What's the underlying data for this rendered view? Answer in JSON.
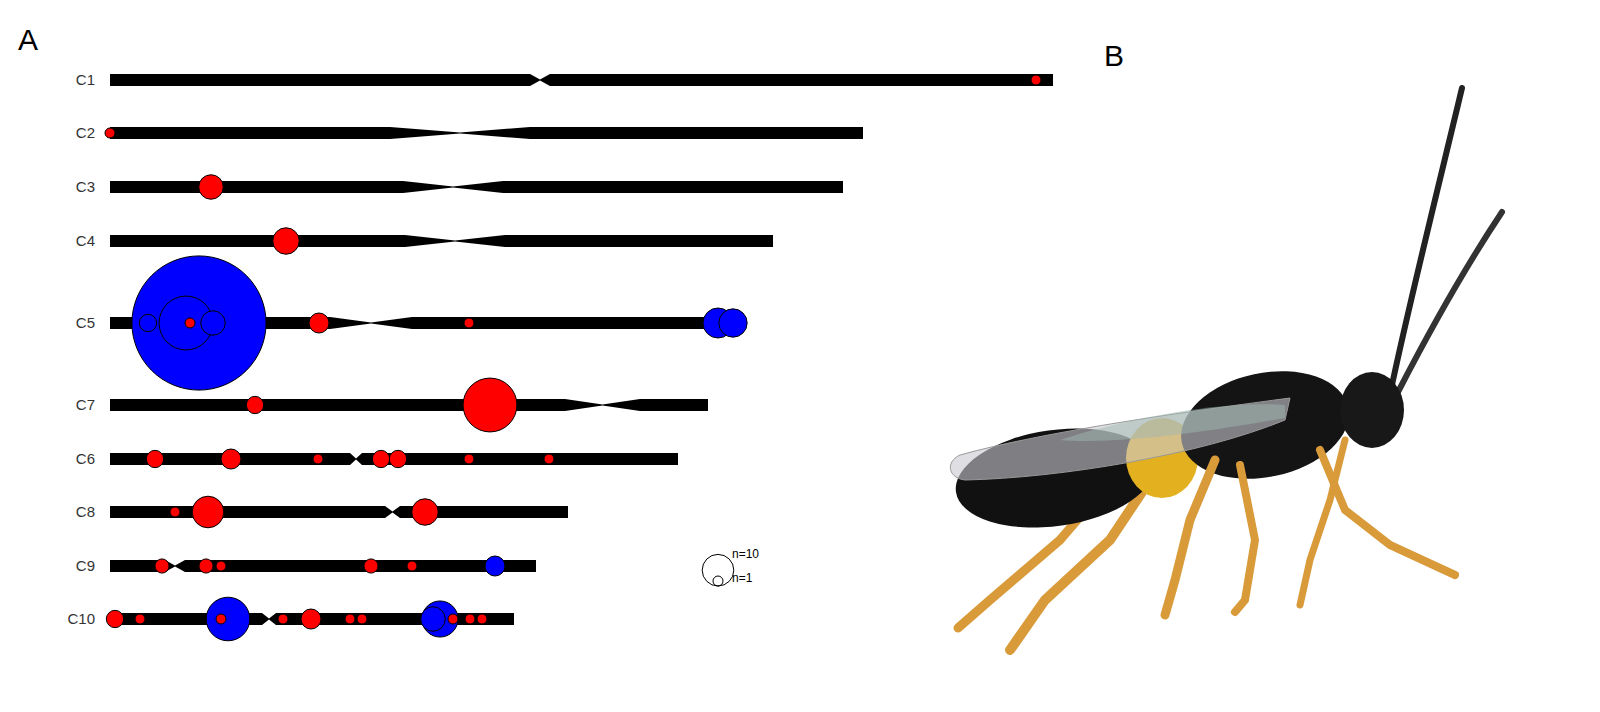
{
  "chart_data": {
    "type": "ideogram",
    "panel_labels": [
      "A",
      "B"
    ],
    "tick_labels": false,
    "chromosomes": [
      {
        "name": "C1",
        "length": 943,
        "centromere": [
          420,
          440
        ],
        "markers": [
          {
            "position": 926,
            "count": 1,
            "color": "#ff0000"
          }
        ]
      },
      {
        "name": "C2",
        "length": 753,
        "centromere": [
          280,
          420
        ],
        "markers": [
          {
            "position": 0,
            "count": 1,
            "color": "#ff0000"
          }
        ]
      },
      {
        "name": "C3",
        "length": 733,
        "centromere": [
          293,
          393
        ],
        "markers": [
          {
            "position": 101,
            "count": 6,
            "color": "#ff0000"
          }
        ]
      },
      {
        "name": "C4",
        "length": 663,
        "centromere": [
          295,
          395
        ],
        "markers": [
          {
            "position": 176,
            "count": 7,
            "color": "#ff0000"
          }
        ]
      },
      {
        "name": "C5",
        "length": 630,
        "centromere": [
          220,
          302
        ],
        "markers": [
          {
            "position": 89,
            "count": 180,
            "color": "#0000ff"
          },
          {
            "position": 76,
            "count": 29,
            "color": "#0000ff"
          },
          {
            "position": 103,
            "count": 6,
            "color": "#0000ff"
          },
          {
            "position": 38,
            "count": 3,
            "color": "#0000ff"
          },
          {
            "position": 80,
            "count": 1,
            "color": "#ff0000"
          },
          {
            "position": 209,
            "count": 4,
            "color": "#ff0000"
          },
          {
            "position": 359,
            "count": 1,
            "color": "#ff0000"
          },
          {
            "position": 608,
            "count": 9,
            "color": "#0000ff"
          },
          {
            "position": 623,
            "count": 8,
            "color": "#0000ff"
          }
        ]
      },
      {
        "name": "C7",
        "length": 598,
        "centromere": [
          455,
          530
        ],
        "markers": [
          {
            "position": 145,
            "count": 3,
            "color": "#ff0000"
          },
          {
            "position": 380,
            "count": 29,
            "color": "#ff0000"
          }
        ]
      },
      {
        "name": "C6",
        "length": 568,
        "centromere": [
          240,
          252
        ],
        "markers": [
          {
            "position": 45,
            "count": 3,
            "color": "#ff0000"
          },
          {
            "position": 121,
            "count": 4,
            "color": "#ff0000"
          },
          {
            "position": 208,
            "count": 1,
            "color": "#ff0000"
          },
          {
            "position": 271,
            "count": 3,
            "color": "#ff0000"
          },
          {
            "position": 288,
            "count": 3,
            "color": "#ff0000"
          },
          {
            "position": 359,
            "count": 1,
            "color": "#ff0000"
          },
          {
            "position": 439,
            "count": 1,
            "color": "#ff0000"
          }
        ]
      },
      {
        "name": "C8",
        "length": 458,
        "centromere": [
          275,
          290
        ],
        "markers": [
          {
            "position": 65,
            "count": 1,
            "color": "#ff0000"
          },
          {
            "position": 98,
            "count": 10,
            "color": "#ff0000"
          },
          {
            "position": 315,
            "count": 7,
            "color": "#ff0000"
          }
        ]
      },
      {
        "name": "C9",
        "length": 426,
        "centromere": [
          55,
          75
        ],
        "markers": [
          {
            "position": 52,
            "count": 2,
            "color": "#ff0000"
          },
          {
            "position": 96,
            "count": 2,
            "color": "#ff0000"
          },
          {
            "position": 111,
            "count": 1,
            "color": "#ff0000"
          },
          {
            "position": 261,
            "count": 2,
            "color": "#ff0000"
          },
          {
            "position": 302,
            "count": 1,
            "color": "#ff0000"
          },
          {
            "position": 385,
            "count": 4,
            "color": "#0000ff"
          }
        ]
      },
      {
        "name": "C10",
        "length": 404,
        "centromere": [
          152,
          166
        ],
        "markers": [
          {
            "position": 5,
            "count": 3,
            "color": "#ff0000"
          },
          {
            "position": 30,
            "count": 1,
            "color": "#ff0000"
          },
          {
            "position": 118,
            "count": 19,
            "color": "#0000ff"
          },
          {
            "position": 111,
            "count": 1,
            "color": "#ff0000"
          },
          {
            "position": 173,
            "count": 1,
            "color": "#ff0000"
          },
          {
            "position": 201,
            "count": 4,
            "color": "#ff0000"
          },
          {
            "position": 240,
            "count": 1,
            "color": "#ff0000"
          },
          {
            "position": 252,
            "count": 1,
            "color": "#ff0000"
          },
          {
            "position": 330,
            "count": 13,
            "color": "#0000ff"
          },
          {
            "position": 323,
            "count": 6,
            "color": "#0000ff"
          },
          {
            "position": 343,
            "count": 1,
            "color": "#ff0000"
          },
          {
            "position": 360,
            "count": 1,
            "color": "#ff0000"
          },
          {
            "position": 372,
            "count": 1,
            "color": "#ff0000"
          }
        ]
      }
    ],
    "size_legend": [
      {
        "value": 10,
        "label": "n=10"
      },
      {
        "value": 1,
        "label": "n=1"
      }
    ]
  }
}
